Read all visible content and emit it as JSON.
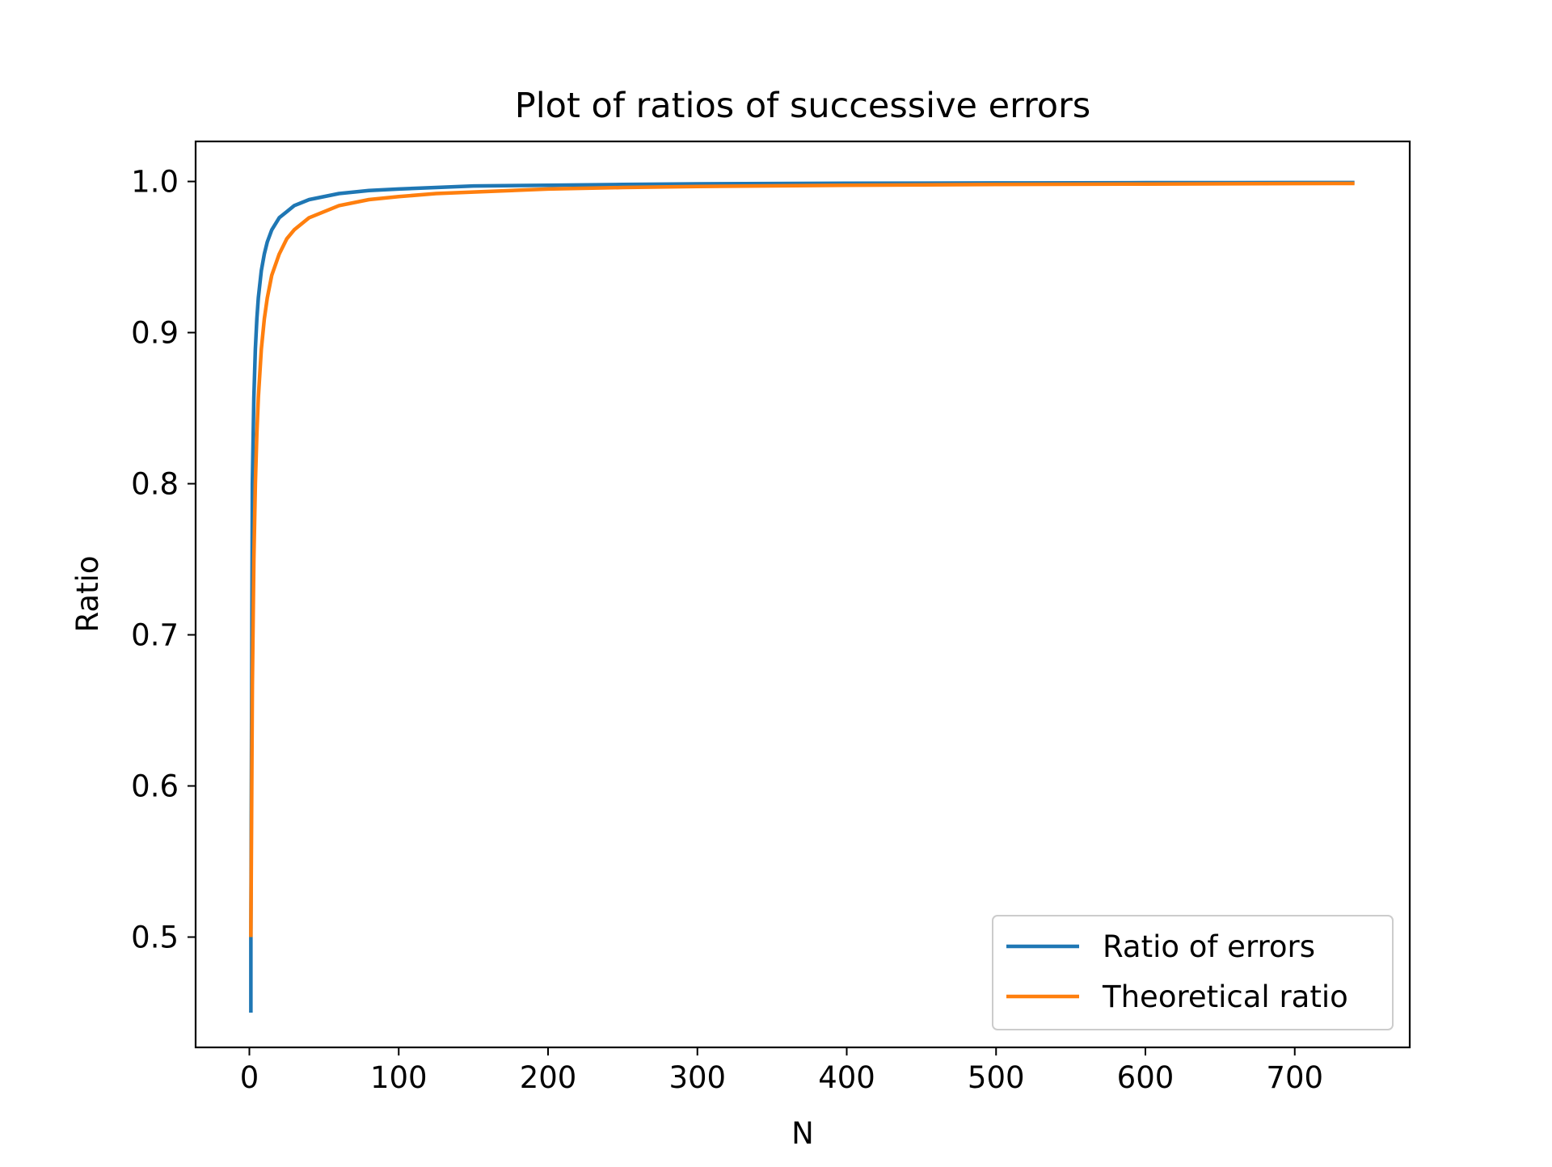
{
  "chart_data": {
    "type": "line",
    "title": "Plot of ratios of successive errors",
    "xlabel": "N",
    "ylabel": "Ratio",
    "xlim": [
      -36,
      777
    ],
    "ylim": [
      0.427,
      1.0265
    ],
    "x_ticks": [
      0,
      100,
      200,
      300,
      400,
      500,
      600,
      700
    ],
    "x_tick_labels": [
      "0",
      "100",
      "200",
      "300",
      "400",
      "500",
      "600",
      "700"
    ],
    "y_ticks": [
      0.5,
      0.6,
      0.7,
      0.8,
      0.9,
      1.0
    ],
    "y_tick_labels": [
      "0.5",
      "0.6",
      "0.7",
      "0.8",
      "0.9",
      "1.0"
    ],
    "grid": false,
    "legend_position": "lower-right",
    "series": [
      {
        "name": "Ratio of errors",
        "color": "#1f77b4",
        "x": [
          1,
          1,
          2,
          3,
          4,
          5,
          6,
          8,
          10,
          12,
          15,
          20,
          25,
          30,
          40,
          50,
          60,
          80,
          100,
          125,
          150,
          200,
          250,
          300,
          400,
          500,
          600,
          700,
          740
        ],
        "y": [
          0.45,
          0.5,
          0.8,
          0.857,
          0.889,
          0.909,
          0.923,
          0.941,
          0.952,
          0.96,
          0.968,
          0.976,
          0.98,
          0.984,
          0.988,
          0.99,
          0.992,
          0.994,
          0.995,
          0.996,
          0.997,
          0.9975,
          0.998,
          0.9984,
          0.9988,
          0.999,
          0.9992,
          0.9993,
          0.9993
        ]
      },
      {
        "name": "Theoretical ratio",
        "color": "#ff7f0e",
        "x": [
          1,
          2,
          3,
          4,
          5,
          6,
          8,
          10,
          12,
          15,
          20,
          25,
          30,
          40,
          50,
          60,
          80,
          100,
          125,
          150,
          200,
          250,
          300,
          400,
          500,
          600,
          700,
          740
        ],
        "y": [
          0.5,
          0.667,
          0.75,
          0.8,
          0.833,
          0.857,
          0.889,
          0.909,
          0.923,
          0.938,
          0.952,
          0.962,
          0.968,
          0.976,
          0.98,
          0.984,
          0.988,
          0.99,
          0.992,
          0.993,
          0.995,
          0.996,
          0.9967,
          0.9975,
          0.998,
          0.9983,
          0.9986,
          0.9987
        ]
      }
    ]
  }
}
